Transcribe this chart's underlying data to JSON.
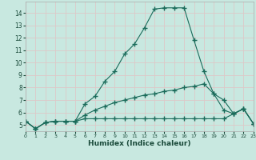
{
  "xlabel": "Humidex (Indice chaleur)",
  "ylabel": "",
  "bg_color": "#c8e8e0",
  "grid_color": "#ddc8c8",
  "line_color": "#1a6b5a",
  "x_values": [
    0,
    1,
    2,
    3,
    4,
    5,
    6,
    7,
    8,
    9,
    10,
    11,
    12,
    13,
    14,
    15,
    16,
    17,
    18,
    19,
    20,
    21,
    22,
    23
  ],
  "line1": [
    5.3,
    4.7,
    5.2,
    5.3,
    5.3,
    5.3,
    6.7,
    7.3,
    8.5,
    9.3,
    10.7,
    11.5,
    12.8,
    14.3,
    14.4,
    14.4,
    14.4,
    11.8,
    9.3,
    7.5,
    7.0,
    5.9,
    6.3,
    5.1
  ],
  "line2": [
    5.3,
    4.7,
    5.2,
    5.3,
    5.3,
    5.3,
    5.8,
    6.2,
    6.5,
    6.8,
    7.0,
    7.2,
    7.4,
    7.5,
    7.7,
    7.8,
    8.0,
    8.1,
    8.3,
    7.5,
    6.2,
    5.9,
    6.3,
    5.1
  ],
  "line3": [
    5.3,
    4.7,
    5.2,
    5.3,
    5.3,
    5.3,
    5.5,
    5.5,
    5.5,
    5.5,
    5.5,
    5.5,
    5.5,
    5.5,
    5.5,
    5.5,
    5.5,
    5.5,
    5.5,
    5.5,
    5.5,
    5.9,
    6.3,
    5.1
  ],
  "xlim": [
    0,
    23
  ],
  "ylim": [
    4.5,
    14.9
  ],
  "yticks": [
    5,
    6,
    7,
    8,
    9,
    10,
    11,
    12,
    13,
    14
  ],
  "xticks": [
    0,
    1,
    2,
    3,
    4,
    5,
    6,
    7,
    8,
    9,
    10,
    11,
    12,
    13,
    14,
    15,
    16,
    17,
    18,
    19,
    20,
    21,
    22,
    23
  ],
  "markersize": 4,
  "linewidth": 0.8
}
